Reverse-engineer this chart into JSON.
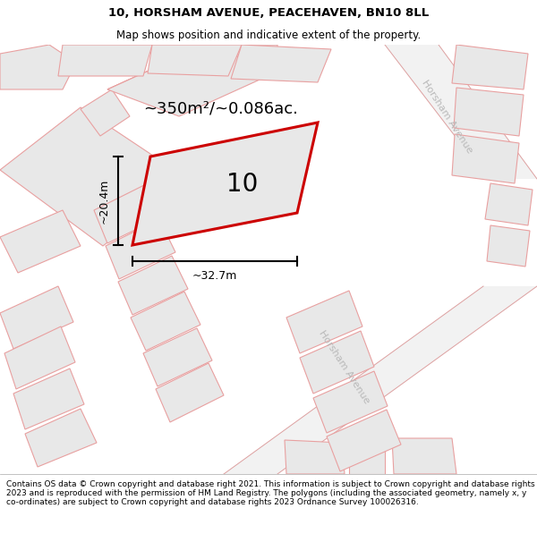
{
  "title_line1": "10, HORSHAM AVENUE, PEACEHAVEN, BN10 8LL",
  "title_line2": "Map shows position and indicative extent of the property.",
  "area_text": "~350m²/~0.086ac.",
  "dim_width": "~32.7m",
  "dim_height": "~20.4m",
  "plot_number": "10",
  "footer_text": "Contains OS data © Crown copyright and database right 2021. This information is subject to Crown copyright and database rights 2023 and is reproduced with the permission of HM Land Registry. The polygons (including the associated geometry, namely x, y co-ordinates) are subject to Crown copyright and database rights 2023 Ordnance Survey 100026316.",
  "bg_color": "#ffffff",
  "map_bg_color": "#efefef",
  "building_fill": "#e8e8e8",
  "building_edge": "#e8a0a0",
  "highlight_fill": "#e8e8e8",
  "highlight_edge": "#cc0000",
  "road_fill": "#f8f8f8",
  "title_fontsize": 9.5,
  "subtitle_fontsize": 8.5,
  "footer_fontsize": 6.5
}
